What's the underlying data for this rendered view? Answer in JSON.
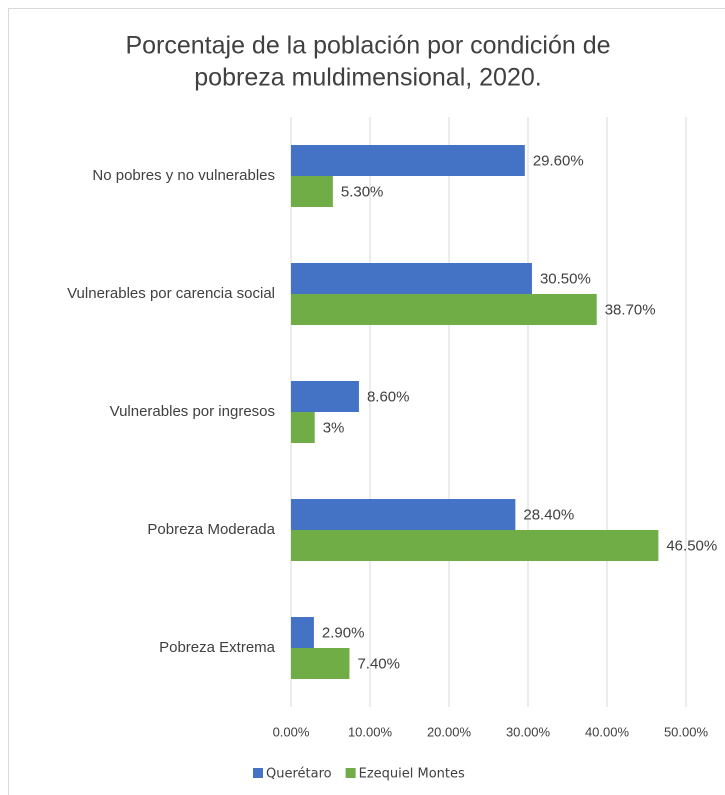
{
  "chart_data": {
    "type": "barh",
    "title": [
      "Porcentaje de la población por condición de",
      "pobreza muldimensional, 2020."
    ],
    "categories": [
      "No pobres y no vulnerables",
      "Vulnerables por carencia social",
      "Vulnerables por ingresos",
      "Pobreza Moderada",
      "Pobreza Extrema"
    ],
    "series": [
      {
        "name": "Querétaro",
        "color": "#4472c4",
        "values": [
          29.6,
          30.5,
          8.6,
          28.4,
          2.9
        ],
        "value_labels": [
          "29.60%",
          "30.50%",
          "8.60%",
          "28.40%",
          "2.90%"
        ]
      },
      {
        "name": "Ezequiel Montes",
        "color": "#70ad47",
        "values": [
          5.3,
          38.7,
          3,
          46.5,
          7.4
        ],
        "value_labels": [
          "5.30%",
          "38.70%",
          "3%",
          "46.50%",
          "7.40%"
        ]
      }
    ],
    "xlim": [
      0,
      50
    ],
    "xticks": [
      {
        "value": 0,
        "label": "0.00%"
      },
      {
        "value": 10,
        "label": "10.00%"
      },
      {
        "value": 20,
        "label": "20.00%"
      },
      {
        "value": 30,
        "label": "30.00%"
      },
      {
        "value": 40,
        "label": "40.00%"
      },
      {
        "value": 50,
        "label": "50.00%"
      }
    ],
    "grid": true,
    "legend": "bottom"
  }
}
